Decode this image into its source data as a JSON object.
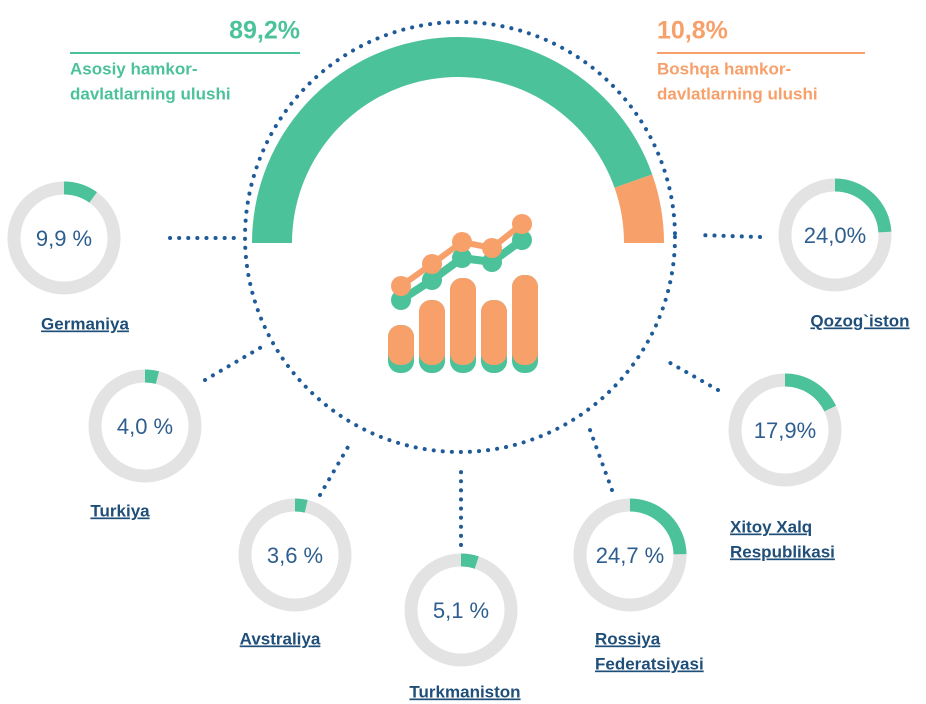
{
  "summary": [
    {
      "value": 89.2,
      "value_label": "89,2%",
      "caption": [
        "Asosiy hamkor-",
        "davlatlarning ulushi"
      ],
      "color": "#4cc29a"
    },
    {
      "value": 10.8,
      "value_label": "10,8%",
      "caption": [
        "Boshqa hamkor-",
        "davlatlarning ulushi"
      ],
      "color": "#f7a06a"
    }
  ],
  "countries": [
    {
      "name": [
        "Germaniya"
      ],
      "value": 9.9,
      "value_label": "9,9 %"
    },
    {
      "name": [
        "Turkiya"
      ],
      "value": 4.0,
      "value_label": "4,0 %"
    },
    {
      "name": [
        "Avstraliya"
      ],
      "value": 3.6,
      "value_label": "3,6 %"
    },
    {
      "name": [
        "Turkmaniston"
      ],
      "value": 5.1,
      "value_label": "5,1 %"
    },
    {
      "name": [
        "Rossiya",
        "Federatsiyasi"
      ],
      "value": 24.7,
      "value_label": "24,7 %"
    },
    {
      "name": [
        "Xitoy Xalq",
        "Respublikasi"
      ],
      "value": 17.9,
      "value_label": "17,9%"
    },
    {
      "name": [
        "Qozog`iston"
      ],
      "value": 24.0,
      "value_label": "24,0%"
    }
  ]
}
